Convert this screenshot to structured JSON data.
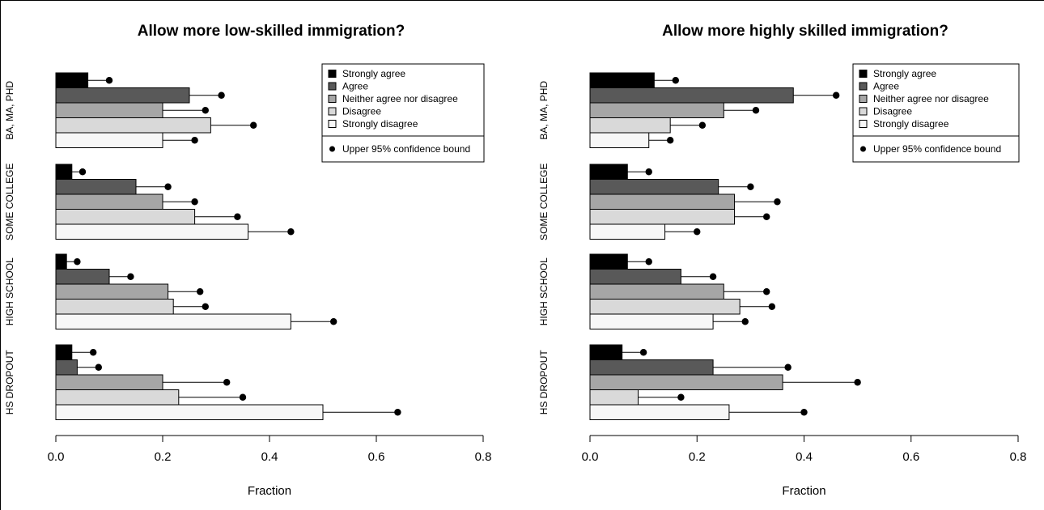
{
  "chart_data": [
    {
      "type": "bar",
      "orientation": "horizontal",
      "title": "Allow more low-skilled immigration?",
      "xlabel": "Fraction",
      "xlim": [
        0,
        0.8
      ],
      "xticks": [
        "0.0",
        "0.2",
        "0.4",
        "0.6",
        "0.8"
      ],
      "groups": [
        "BA, MA, PHD",
        "SOME COLLEGE",
        "HIGH SCHOOL",
        "HS DROPOUT"
      ],
      "series": [
        {
          "name": "Strongly agree",
          "color": "#000000",
          "values": [
            0.06,
            0.03,
            0.02,
            0.03
          ],
          "upper": [
            0.1,
            0.05,
            0.04,
            0.07
          ]
        },
        {
          "name": "Agree",
          "color": "#595959",
          "values": [
            0.25,
            0.15,
            0.1,
            0.04
          ],
          "upper": [
            0.31,
            0.21,
            0.14,
            0.08
          ]
        },
        {
          "name": "Neither agree nor disagree",
          "color": "#a6a6a6",
          "values": [
            0.2,
            0.2,
            0.21,
            0.2
          ],
          "upper": [
            0.28,
            0.26,
            0.27,
            0.32
          ]
        },
        {
          "name": "Disagree",
          "color": "#d9d9d9",
          "values": [
            0.29,
            0.26,
            0.22,
            0.23
          ],
          "upper": [
            0.37,
            0.34,
            0.28,
            0.35
          ]
        },
        {
          "name": "Strongly disagree",
          "color": "#f7f7f7",
          "values": [
            0.2,
            0.36,
            0.44,
            0.5
          ],
          "upper": [
            0.26,
            0.44,
            0.52,
            0.64
          ]
        }
      ],
      "legend_position": "top-right",
      "legend_marker_label": "Upper 95% confidence bound",
      "grid": false
    },
    {
      "type": "bar",
      "orientation": "horizontal",
      "title": "Allow more highly skilled immigration?",
      "xlabel": "Fraction",
      "xlim": [
        0,
        0.8
      ],
      "xticks": [
        "0.0",
        "0.2",
        "0.4",
        "0.6",
        "0.8"
      ],
      "groups": [
        "BA, MA, PHD",
        "SOME COLLEGE",
        "HIGH SCHOOL",
        "HS DROPOUT"
      ],
      "series": [
        {
          "name": "Strongly agree",
          "color": "#000000",
          "values": [
            0.12,
            0.07,
            0.07,
            0.06
          ],
          "upper": [
            0.16,
            0.11,
            0.11,
            0.1
          ]
        },
        {
          "name": "Agree",
          "color": "#595959",
          "values": [
            0.38,
            0.24,
            0.17,
            0.23
          ],
          "upper": [
            0.46,
            0.3,
            0.23,
            0.37
          ]
        },
        {
          "name": "Neither agree nor disagree",
          "color": "#a6a6a6",
          "values": [
            0.25,
            0.27,
            0.25,
            0.36
          ],
          "upper": [
            0.31,
            0.35,
            0.33,
            0.5
          ]
        },
        {
          "name": "Disagree",
          "color": "#d9d9d9",
          "values": [
            0.15,
            0.27,
            0.28,
            0.09
          ],
          "upper": [
            0.21,
            0.33,
            0.34,
            0.17
          ]
        },
        {
          "name": "Strongly disagree",
          "color": "#f7f7f7",
          "values": [
            0.11,
            0.14,
            0.23,
            0.26
          ],
          "upper": [
            0.15,
            0.2,
            0.29,
            0.4
          ]
        }
      ],
      "legend_position": "top-right",
      "legend_marker_label": "Upper 95% confidence bound",
      "grid": false
    }
  ]
}
